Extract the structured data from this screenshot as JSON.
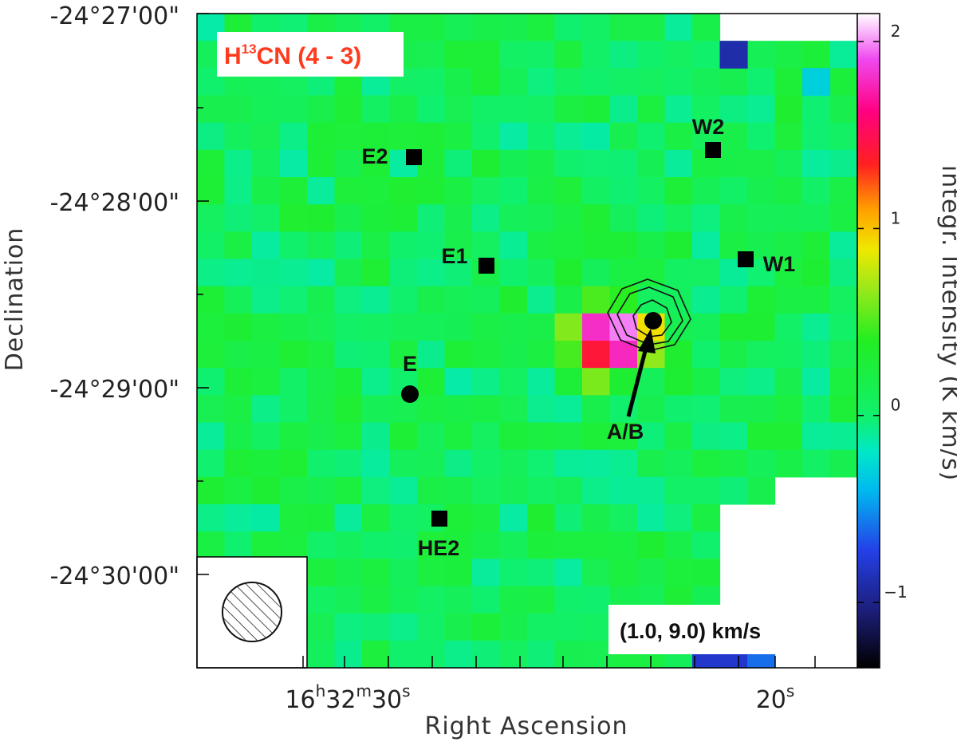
{
  "chart_data": {
    "type": "heatmap",
    "title": "H13CN (4 - 3)",
    "title_parts": {
      "molecule_main": "H",
      "isotope": "13",
      "molecule_rest": "CN (4 - 3)",
      "color": "#ff3b1f"
    },
    "velocity_range_label": "(1.0, 9.0) km/s",
    "xlabel": "Right Ascension",
    "ylabel": "Declination",
    "x_ticks": [
      {
        "hours": "16",
        "minutes": "32",
        "seconds": "30",
        "h_sup": "h",
        "m_sup": "m",
        "s_sup": "s"
      },
      {
        "seconds": "20",
        "s_sup": "s"
      }
    ],
    "y_ticks": [
      "-24°27'00\"",
      "-24°28'00\"",
      "-24°29'00\"",
      "-24°30'00\""
    ],
    "colorbar": {
      "label": "integr. Intensity (K km/s)",
      "ticks": [
        "2",
        "1",
        "0",
        "−1"
      ],
      "tick_values": [
        2,
        1,
        0,
        -1
      ],
      "range": [
        -1.35,
        2.15
      ]
    },
    "sources": [
      {
        "name": "E2",
        "marker": "square"
      },
      {
        "name": "E1",
        "marker": "square"
      },
      {
        "name": "E",
        "marker": "circle"
      },
      {
        "name": "HE2",
        "marker": "square"
      },
      {
        "name": "W2",
        "marker": "square"
      },
      {
        "name": "W1",
        "marker": "square"
      },
      {
        "name": "A/B",
        "marker": "circle"
      }
    ],
    "peak": {
      "position_source": "A/B",
      "max_value": 2.0
    },
    "contours": 3,
    "beam": "hatched circle (lower-left)",
    "background_level": 0.1
  }
}
